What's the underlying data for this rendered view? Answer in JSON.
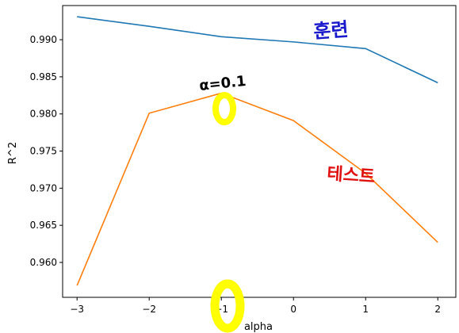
{
  "chart_data": {
    "type": "line",
    "title": "",
    "xlabel": "alpha",
    "ylabel": "R^2",
    "x": [
      -3,
      -2,
      -1,
      0,
      1,
      2
    ],
    "xticks": [
      "−3",
      "−2",
      "−1",
      "0",
      "1",
      "2"
    ],
    "xlim": [
      -3.2,
      2.25
    ],
    "yticks": [
      "0.960",
      "0.965",
      "0.970",
      "0.975",
      "0.980",
      "0.985",
      "0.990"
    ],
    "ylim": [
      0.9553,
      0.9946
    ],
    "grid": false,
    "legend": "none",
    "series": [
      {
        "values": [
          0.9931,
          0.9918,
          0.9904,
          0.9897,
          0.9888,
          0.9842
        ],
        "color": "#1f77b4"
      },
      {
        "values": [
          0.9569,
          0.9801,
          0.9828,
          0.9791,
          0.972,
          0.9627
        ],
        "color": "#ff7f0e"
      }
    ],
    "annotations": [
      {
        "text": "훈련",
        "color": "#1a1acc"
      },
      {
        "text": "테스트",
        "color": "#e01010"
      },
      {
        "text": "α=0.1",
        "color": "#000000"
      }
    ],
    "highlight_color": "#ffff00"
  }
}
